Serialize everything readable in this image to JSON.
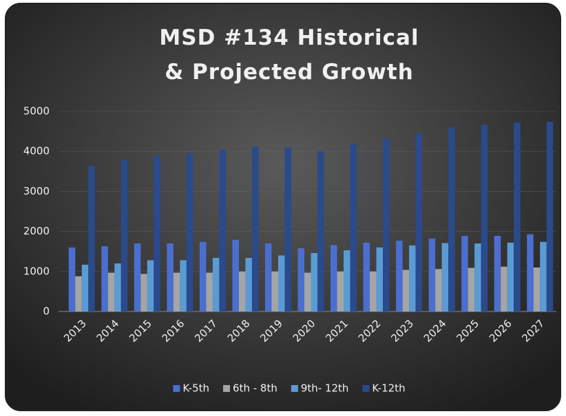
{
  "chart_data": {
    "type": "bar",
    "title": "MSD #134 Historical & Projected Growth",
    "categories": [
      "2013",
      "2014",
      "2015",
      "2016",
      "2017",
      "2018",
      "2019",
      "2020",
      "2021",
      "2022",
      "2023",
      "2024",
      "2025",
      "2026",
      "2027"
    ],
    "series": [
      {
        "name": "K-5th",
        "color": "#4a6fd0",
        "values": [
          1600,
          1630,
          1700,
          1700,
          1740,
          1790,
          1700,
          1580,
          1660,
          1720,
          1770,
          1820,
          1890,
          1890,
          1930
        ]
      },
      {
        "name": "6th - 8th",
        "color": "#a5a5a5",
        "values": [
          880,
          970,
          940,
          970,
          970,
          1000,
          1000,
          970,
          1000,
          1000,
          1040,
          1060,
          1090,
          1120,
          1100
        ]
      },
      {
        "name": "9th- 12th",
        "color": "#5b9bd5",
        "values": [
          1170,
          1200,
          1280,
          1280,
          1340,
          1340,
          1400,
          1460,
          1530,
          1600,
          1650,
          1710,
          1700,
          1720,
          1740
        ]
      },
      {
        "name": "K-12th",
        "color": "#2a4a8c",
        "values": [
          3640,
          3790,
          3880,
          3950,
          4040,
          4120,
          4100,
          4000,
          4190,
          4320,
          4450,
          4600,
          4670,
          4720,
          4740
        ]
      }
    ],
    "ylim": [
      0,
      5000
    ],
    "yticks": [
      0,
      1000,
      2000,
      3000,
      4000,
      5000
    ],
    "grid": true,
    "legend": "bottom"
  }
}
